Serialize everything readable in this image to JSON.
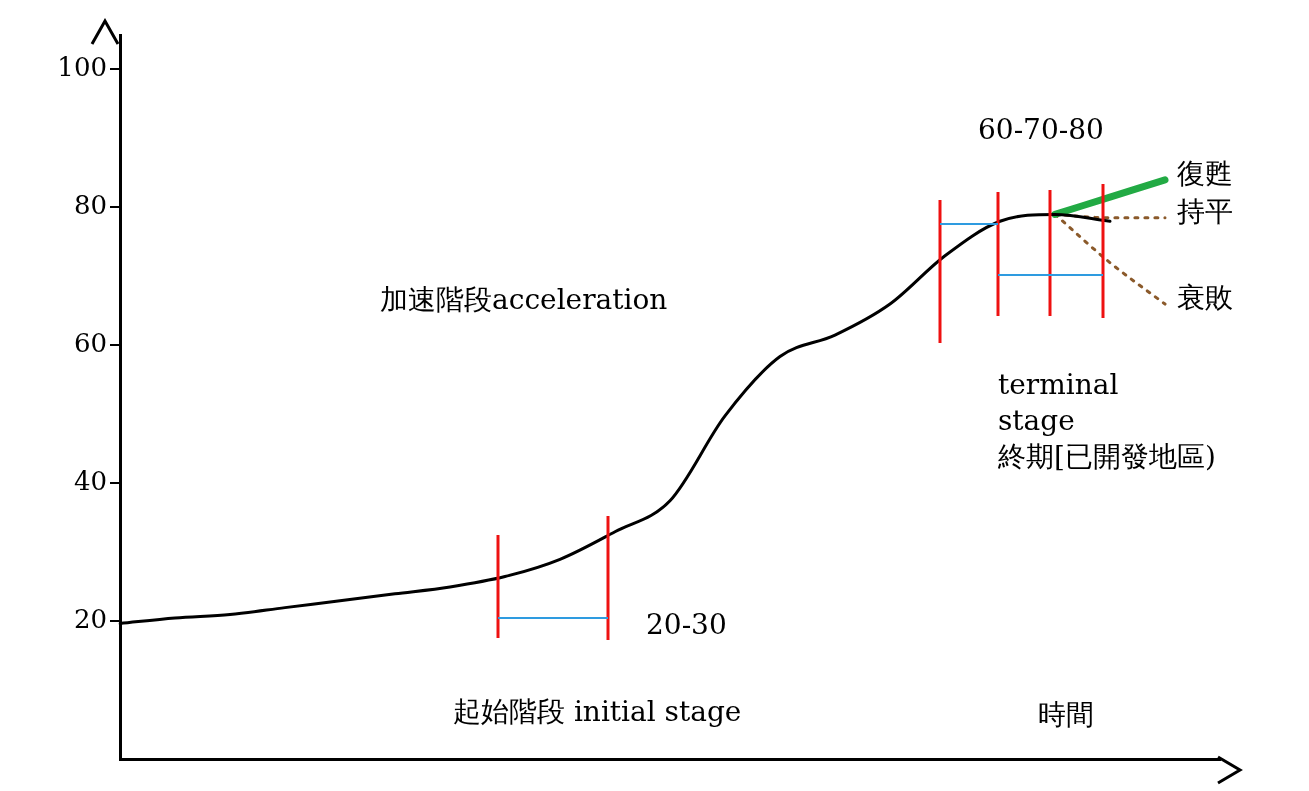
{
  "chart_data": {
    "type": "line",
    "xlabel": "時間",
    "categories": [
      null,
      null,
      null,
      null,
      null,
      null,
      null,
      null,
      null,
      null,
      null,
      null,
      null,
      null,
      null,
      null,
      null,
      null,
      null,
      null,
      null
    ],
    "series": [
      {
        "color": "#000000",
        "values": [
          19.7,
          20.5,
          21,
          22,
          23,
          24,
          25,
          26.5,
          29,
          33,
          37.5,
          49.8,
          58.4,
          61.5,
          66,
          73,
          78,
          79,
          78,
          null,
          null
        ]
      },
      {
        "name": "復甦",
        "color": "#22aa44",
        "line_style": "solid",
        "values": [
          null,
          null,
          null,
          null,
          null,
          null,
          null,
          null,
          null,
          null,
          null,
          null,
          null,
          null,
          null,
          null,
          null,
          79,
          81.5,
          84,
          null
        ]
      },
      {
        "name": "持平",
        "color": "#8b5a2b",
        "line_style": "dotted",
        "values": [
          null,
          null,
          null,
          null,
          null,
          null,
          null,
          null,
          null,
          null,
          null,
          null,
          null,
          null,
          null,
          null,
          null,
          79,
          78.5,
          78.5,
          null
        ]
      },
      {
        "name": "衰敗",
        "color": "#8b5a2b",
        "line_style": "dotted",
        "values": [
          null,
          null,
          null,
          null,
          null,
          null,
          null,
          null,
          null,
          null,
          null,
          null,
          null,
          null,
          null,
          null,
          null,
          79,
          72,
          66,
          null
        ]
      }
    ],
    "ylim": [
      0,
      105
    ],
    "yticks": [
      20,
      40,
      60,
      80,
      100
    ],
    "grid": false,
    "legend": false,
    "marker": "none",
    "tick_labels": "y",
    "annotations": [
      "60-70-80",
      "加速階段acceleration",
      "terminal\nstage\n終期[已開發地區)",
      "20-30",
      "起始階段 initial stage"
    ]
  }
}
